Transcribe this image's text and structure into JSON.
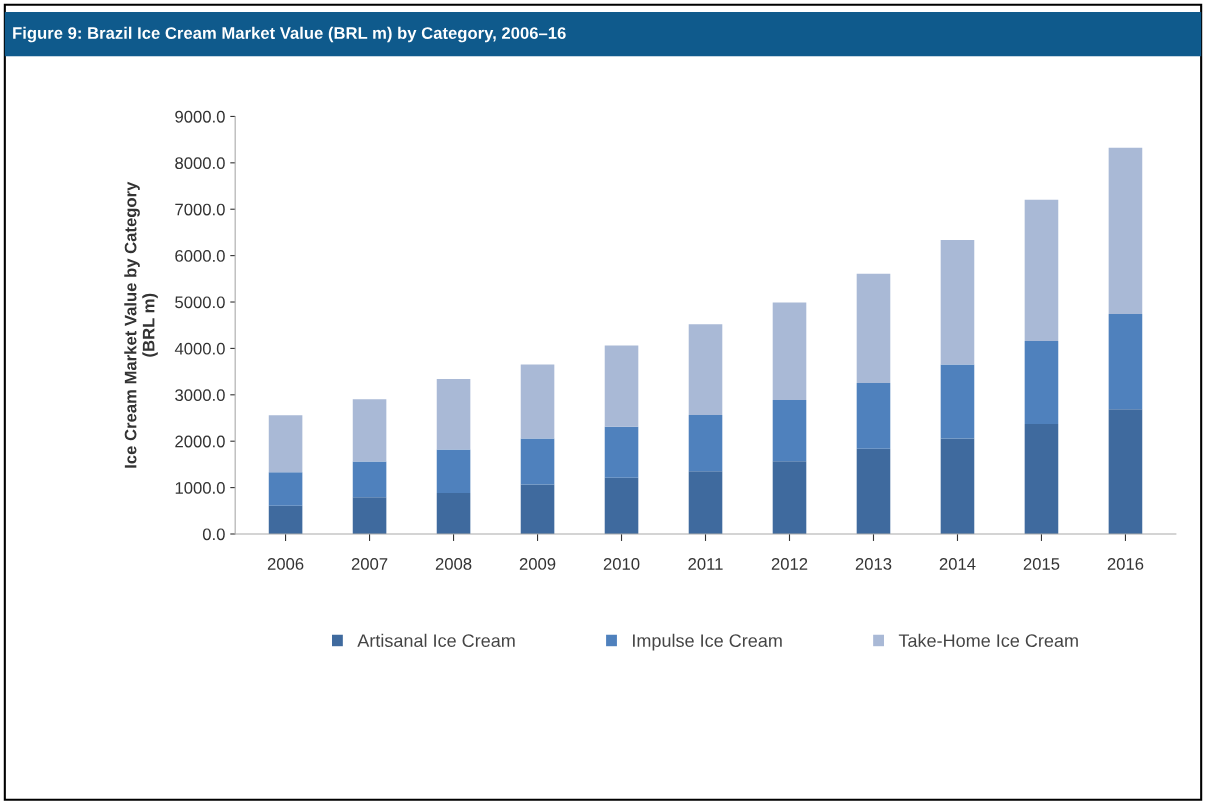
{
  "chart_data": {
    "type": "bar",
    "title": "Figure 9: Brazil Ice Cream Market Value (BRL m) by Category, 2006–16",
    "ylabel": "Ice Cream Market Value by Category\n(BRL m)",
    "categories": [
      "2006",
      "2007",
      "2008",
      "2009",
      "2010",
      "2011",
      "2012",
      "2013",
      "2014",
      "2015",
      "2016"
    ],
    "stacked": true,
    "series": [
      {
        "name": "Artisanal Ice Cream",
        "color": "#3f6a9e",
        "values": [
          610,
          790,
          885,
          1065,
          1210,
          1355,
          1570,
          1840,
          2060,
          2370,
          2690
        ]
      },
      {
        "name": "Impulse Ice Cream",
        "color": "#4f81bd",
        "values": [
          720,
          775,
          935,
          995,
          1100,
          1210,
          1320,
          1415,
          1595,
          1790,
          2050
        ]
      },
      {
        "name": "Take-Home Ice Cream",
        "color": "#a9b9d6",
        "values": [
          1230,
          1340,
          1520,
          1595,
          1755,
          1955,
          2100,
          2355,
          2680,
          3045,
          3585
        ]
      }
    ],
    "ylim": [
      0,
      9000
    ],
    "yticks": [
      {
        "value": 0,
        "label": "0.0"
      },
      {
        "value": 1000,
        "label": "1000.0"
      },
      {
        "value": 2000,
        "label": "2000.0"
      },
      {
        "value": 3000,
        "label": "3000.0"
      },
      {
        "value": 4000,
        "label": "4000.0"
      },
      {
        "value": 5000,
        "label": "5000.0"
      },
      {
        "value": 6000,
        "label": "6000.0"
      },
      {
        "value": 7000,
        "label": "7000.0"
      },
      {
        "value": 8000,
        "label": "8000.0"
      },
      {
        "value": 9000,
        "label": "9000.0"
      }
    ],
    "grid": false,
    "legend": "bottom"
  }
}
